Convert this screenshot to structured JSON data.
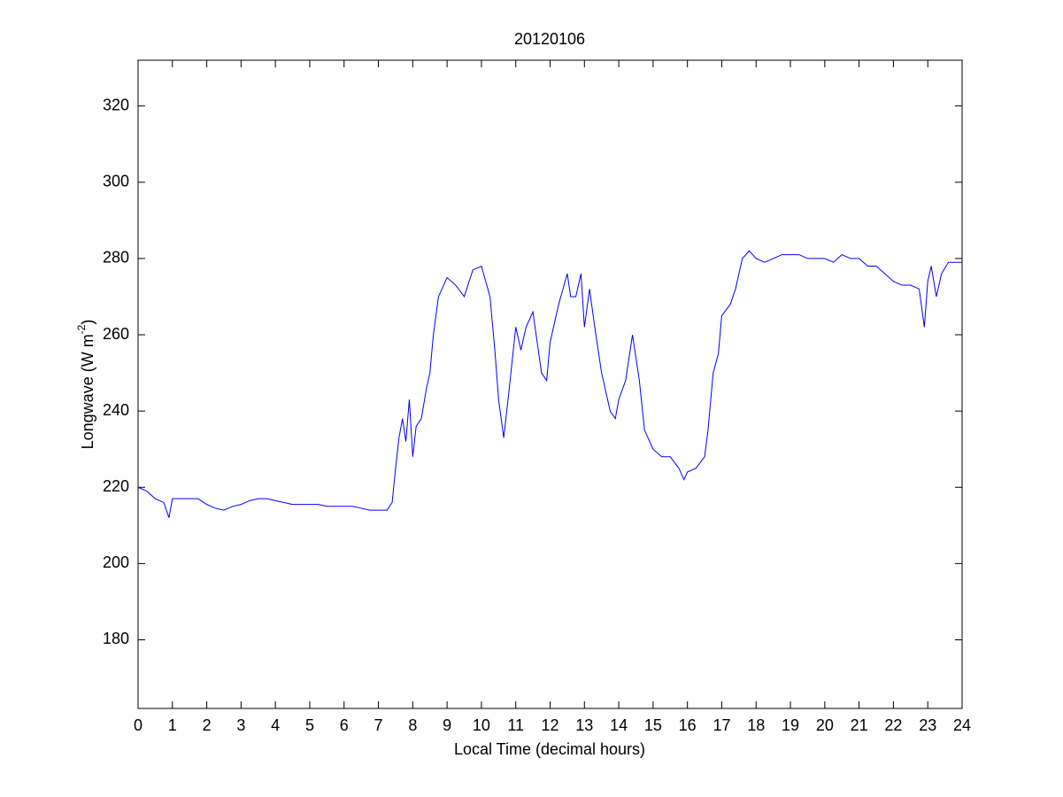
{
  "chart_data": {
    "type": "line",
    "title": "20120106",
    "x_label": "Local Time (decimal hours)",
    "y_label": {
      "text": "Longwave (W m",
      "superscript": "-2",
      "close": ")"
    },
    "xlim": [
      0,
      24
    ],
    "xticks": [
      0,
      1,
      2,
      3,
      4,
      5,
      6,
      7,
      8,
      9,
      10,
      11,
      12,
      13,
      14,
      15,
      16,
      17,
      18,
      19,
      20,
      21,
      22,
      23,
      24
    ],
    "ylim": [
      162,
      332
    ],
    "yticks": [
      180,
      200,
      220,
      240,
      260,
      280,
      300,
      320
    ],
    "grid": false,
    "x": [
      0,
      0.25,
      0.5,
      0.75,
      0.9,
      1,
      1.25,
      1.5,
      1.75,
      2,
      2.25,
      2.5,
      2.75,
      3,
      3.25,
      3.5,
      3.75,
      4,
      4.25,
      4.5,
      4.75,
      5,
      5.25,
      5.5,
      5.75,
      6,
      6.25,
      6.5,
      6.75,
      7,
      7.25,
      7.4,
      7.5,
      7.6,
      7.7,
      7.8,
      7.9,
      8,
      8.1,
      8.25,
      8.4,
      8.5,
      8.6,
      8.75,
      9,
      9.25,
      9.5,
      9.75,
      10,
      10.25,
      10.4,
      10.5,
      10.65,
      10.8,
      11,
      11.15,
      11.3,
      11.5,
      11.75,
      11.9,
      12,
      12.25,
      12.5,
      12.6,
      12.75,
      12.9,
      13,
      13.15,
      13.3,
      13.5,
      13.75,
      13.9,
      14,
      14.2,
      14.4,
      14.6,
      14.75,
      15,
      15.25,
      15.5,
      15.75,
      15.9,
      16,
      16.25,
      16.5,
      16.6,
      16.75,
      16.9,
      17,
      17.25,
      17.4,
      17.6,
      17.8,
      18,
      18.25,
      18.5,
      18.75,
      19,
      19.25,
      19.5,
      19.75,
      20,
      20.25,
      20.5,
      20.75,
      21,
      21.25,
      21.5,
      21.75,
      22,
      22.25,
      22.5,
      22.75,
      22.9,
      23,
      23.1,
      23.25,
      23.4,
      23.6,
      23.8,
      24
    ],
    "series": [
      {
        "name": "Longwave",
        "color": "#0000ff",
        "values": [
          220,
          219,
          217,
          216,
          212,
          217,
          217,
          217,
          217,
          215.5,
          214.5,
          214,
          215,
          215.5,
          216.5,
          217,
          217,
          216.5,
          216,
          215.5,
          215.5,
          215.5,
          215.5,
          215,
          215,
          215,
          215,
          214.5,
          214,
          214,
          214,
          216,
          225,
          233,
          238,
          232,
          243,
          228,
          236,
          238,
          246,
          250,
          260,
          270,
          275,
          273,
          270,
          277,
          278,
          270,
          255,
          243,
          233,
          245,
          262,
          256,
          262,
          266,
          250,
          248,
          258,
          268,
          276,
          270,
          270,
          276,
          262,
          272,
          262,
          250,
          240,
          238,
          243,
          248,
          260,
          248,
          235,
          230,
          228,
          228,
          225,
          222,
          224,
          225,
          228,
          235,
          250,
          255,
          265,
          268,
          272,
          280,
          282,
          280,
          279,
          280,
          281,
          281,
          281,
          280,
          280,
          280,
          279,
          281,
          280,
          280,
          278,
          278,
          276,
          274,
          273,
          273,
          272,
          262,
          274,
          278,
          270,
          276,
          279,
          279,
          279
        ]
      }
    ]
  }
}
